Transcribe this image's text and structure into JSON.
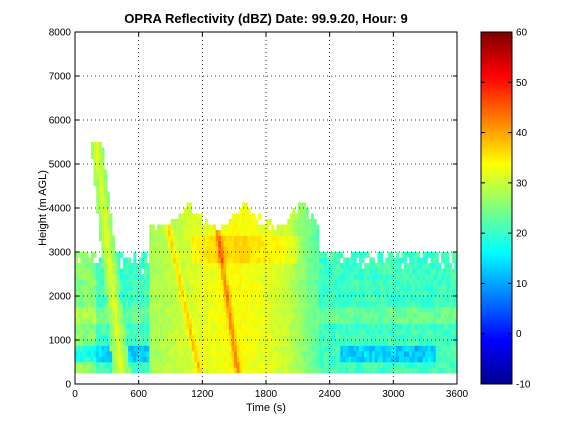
{
  "chart_data": {
    "type": "heatmap",
    "title": "OPRA Reflectivity (dBZ)  Date: 99.9.20, Hour: 9",
    "xlabel": "Time (s)",
    "ylabel": "Height (m AGL)",
    "xlim": [
      0,
      3600
    ],
    "ylim": [
      0,
      8000
    ],
    "xticks": [
      0,
      600,
      1200,
      1800,
      2400,
      3000,
      3600
    ],
    "yticks": [
      0,
      1000,
      2000,
      3000,
      4000,
      5000,
      6000,
      7000,
      8000
    ],
    "grid": true,
    "colorbar": {
      "range": [
        -10,
        60
      ],
      "ticks": [
        -10,
        0,
        10,
        20,
        30,
        40,
        50,
        60
      ],
      "colormap": "jet",
      "placement": "right"
    },
    "features": [
      {
        "name": "main-echo",
        "x_range": [
          700,
          2300
        ],
        "top_m": 4200,
        "peak_dbz": 40
      },
      {
        "name": "early-streak",
        "x_range": [
          200,
          450
        ],
        "top_m": 5500,
        "peak_dbz": 30
      },
      {
        "name": "low-layer",
        "x_range": [
          0,
          3600
        ],
        "top_m": 3000,
        "typical_dbz": 22
      }
    ]
  }
}
